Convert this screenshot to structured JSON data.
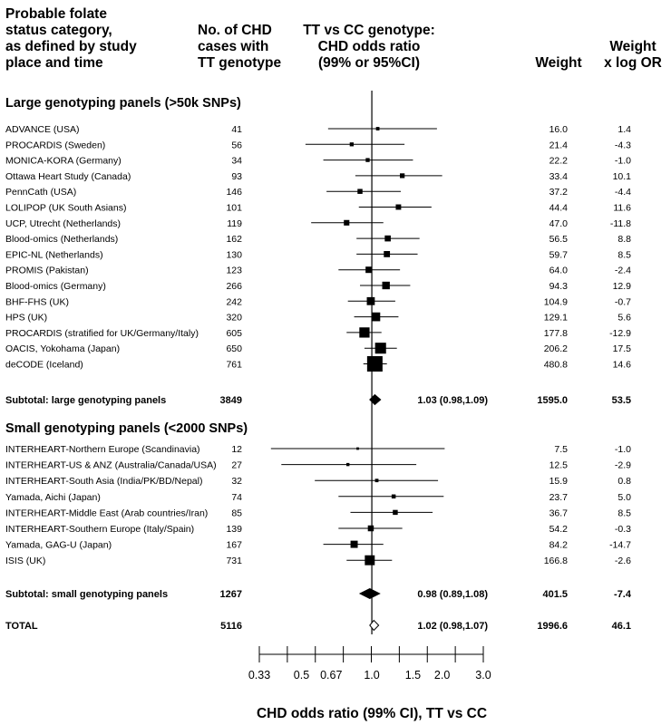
{
  "chart_data": {
    "type": "forest",
    "x_scale": "log",
    "xlim": [
      0.33,
      3.0
    ],
    "reference_line": 1.0,
    "xticks": [
      "0.33",
      "0.5",
      "0.67",
      "1.0",
      "1.5",
      "2.0",
      "3.0"
    ],
    "xlabel": "CHD odds ratio (99% CI), TT vs CC",
    "headers": {
      "category": [
        "Probable folate",
        "status category,",
        "as defined by study",
        "place and time"
      ],
      "cases": [
        "No. of CHD",
        "cases with",
        "TT genotype"
      ],
      "or": [
        "TT vs CC genotype:",
        "CHD odds ratio",
        "(99% or 95%CI)"
      ],
      "weight": [
        "Weight"
      ],
      "wlogor": [
        "Weight",
        "x log OR"
      ]
    },
    "sections": [
      {
        "title": "Large genotyping panels (>50k SNPs)",
        "studies": [
          {
            "name": "ADVANCE (USA)",
            "cases": "41",
            "or": 1.06,
            "lo": 0.65,
            "hi": 1.9,
            "weight": "16.0",
            "wlogor": "1.4"
          },
          {
            "name": "PROCARDIS (Sweden)",
            "cases": "56",
            "or": 0.82,
            "lo": 0.52,
            "hi": 1.38,
            "weight": "21.4",
            "wlogor": "-4.3"
          },
          {
            "name": "MONICA-KORA (Germany)",
            "cases": "34",
            "or": 0.96,
            "lo": 0.62,
            "hi": 1.5,
            "weight": "22.2",
            "wlogor": "-1.0"
          },
          {
            "name": "Ottawa Heart Study (Canada)",
            "cases": "93",
            "or": 1.35,
            "lo": 0.85,
            "hi": 2.0,
            "weight": "33.4",
            "wlogor": "10.1"
          },
          {
            "name": "PennCath (USA)",
            "cases": "146",
            "or": 0.89,
            "lo": 0.64,
            "hi": 1.33,
            "weight": "37.2",
            "wlogor": "-4.4"
          },
          {
            "name": "LOLIPOP (UK South Asians)",
            "cases": "101",
            "or": 1.3,
            "lo": 0.88,
            "hi": 1.8,
            "weight": "44.4",
            "wlogor": "11.6"
          },
          {
            "name": "UCP, Utrecht (Netherlands)",
            "cases": "119",
            "or": 0.78,
            "lo": 0.55,
            "hi": 1.12,
            "weight": "47.0",
            "wlogor": "-11.8"
          },
          {
            "name": "Blood-omics (Netherlands)",
            "cases": "162",
            "or": 1.17,
            "lo": 0.86,
            "hi": 1.6,
            "weight": "56.5",
            "wlogor": "8.8"
          },
          {
            "name": "EPIC-NL (Netherlands)",
            "cases": "130",
            "or": 1.16,
            "lo": 0.86,
            "hi": 1.57,
            "weight": "59.7",
            "wlogor": "8.5"
          },
          {
            "name": "PROMIS (Pakistan)",
            "cases": "123",
            "or": 0.97,
            "lo": 0.72,
            "hi": 1.32,
            "weight": "64.0",
            "wlogor": "-2.4"
          },
          {
            "name": "Blood-omics (Germany)",
            "cases": "266",
            "or": 1.15,
            "lo": 0.89,
            "hi": 1.46,
            "weight": "94.3",
            "wlogor": "12.9"
          },
          {
            "name": "BHF-FHS (UK)",
            "cases": "242",
            "or": 0.99,
            "lo": 0.79,
            "hi": 1.26,
            "weight": "104.9",
            "wlogor": "-0.7"
          },
          {
            "name": "HPS (UK)",
            "cases": "320",
            "or": 1.04,
            "lo": 0.84,
            "hi": 1.3,
            "weight": "129.1",
            "wlogor": "5.6"
          },
          {
            "name": "PROCARDIS (stratified for UK/Germany/Italy)",
            "cases": "605",
            "or": 0.93,
            "lo": 0.78,
            "hi": 1.1,
            "weight": "177.8",
            "wlogor": "-12.9"
          },
          {
            "name": "OACIS, Yokohama (Japan)",
            "cases": "650",
            "or": 1.09,
            "lo": 0.93,
            "hi": 1.28,
            "weight": "206.2",
            "wlogor": "17.5"
          },
          {
            "name": "deCODE (Iceland)",
            "cases": "761",
            "or": 1.03,
            "lo": 0.92,
            "hi": 1.16,
            "weight": "480.8",
            "wlogor": "14.6"
          }
        ],
        "subtotal": {
          "label": "Subtotal: large genotyping panels",
          "cases": "3849",
          "or": 1.03,
          "lo": 0.98,
          "hi": 1.09,
          "text": "1.03 (0.98,1.09)",
          "weight": "1595.0",
          "wlogor": "53.5"
        }
      },
      {
        "title": "Small genotyping panels (<2000 SNPs)",
        "studies": [
          {
            "name": "INTERHEART-Northern Europe (Scandinavia)",
            "cases": "12",
            "or": 0.87,
            "lo": 0.37,
            "hi": 2.05,
            "weight": "7.5",
            "wlogor": "-1.0"
          },
          {
            "name": "INTERHEART-US & ANZ (Australia/Canada/USA)",
            "cases": "27",
            "or": 0.79,
            "lo": 0.41,
            "hi": 1.55,
            "weight": "12.5",
            "wlogor": "-2.9"
          },
          {
            "name": "INTERHEART-South Asia (India/PK/BD/Nepal)",
            "cases": "32",
            "or": 1.05,
            "lo": 0.57,
            "hi": 1.92,
            "weight": "15.9",
            "wlogor": "0.8"
          },
          {
            "name": "Yamada, Aichi (Japan)",
            "cases": "74",
            "or": 1.24,
            "lo": 0.72,
            "hi": 2.03,
            "weight": "23.7",
            "wlogor": "5.0"
          },
          {
            "name": "INTERHEART-Middle East (Arab countries/Iran)",
            "cases": "85",
            "or": 1.26,
            "lo": 0.81,
            "hi": 1.82,
            "weight": "36.7",
            "wlogor": "8.5"
          },
          {
            "name": "INTERHEART-Southern Europe (Italy/Spain)",
            "cases": "139",
            "or": 0.99,
            "lo": 0.72,
            "hi": 1.35,
            "weight": "54.2",
            "wlogor": "-0.3"
          },
          {
            "name": "Yamada, GAG-U (Japan)",
            "cases": "167",
            "or": 0.84,
            "lo": 0.62,
            "hi": 1.12,
            "weight": "84.2",
            "wlogor": "-14.7"
          },
          {
            "name": "ISIS (UK)",
            "cases": "731",
            "or": 0.98,
            "lo": 0.78,
            "hi": 1.22,
            "weight": "166.8",
            "wlogor": "-2.6"
          }
        ],
        "subtotal": {
          "label": "Subtotal: small genotyping panels",
          "cases": "1267",
          "or": 0.98,
          "lo": 0.89,
          "hi": 1.08,
          "text": "0.98 (0.89,1.08)",
          "weight": "401.5",
          "wlogor": "-7.4"
        }
      }
    ],
    "total": {
      "label": "TOTAL",
      "cases": "5116",
      "or": 1.02,
      "lo": 0.98,
      "hi": 1.07,
      "text": "1.02 (0.98,1.07)",
      "weight": "1996.6",
      "wlogor": "46.1"
    }
  }
}
